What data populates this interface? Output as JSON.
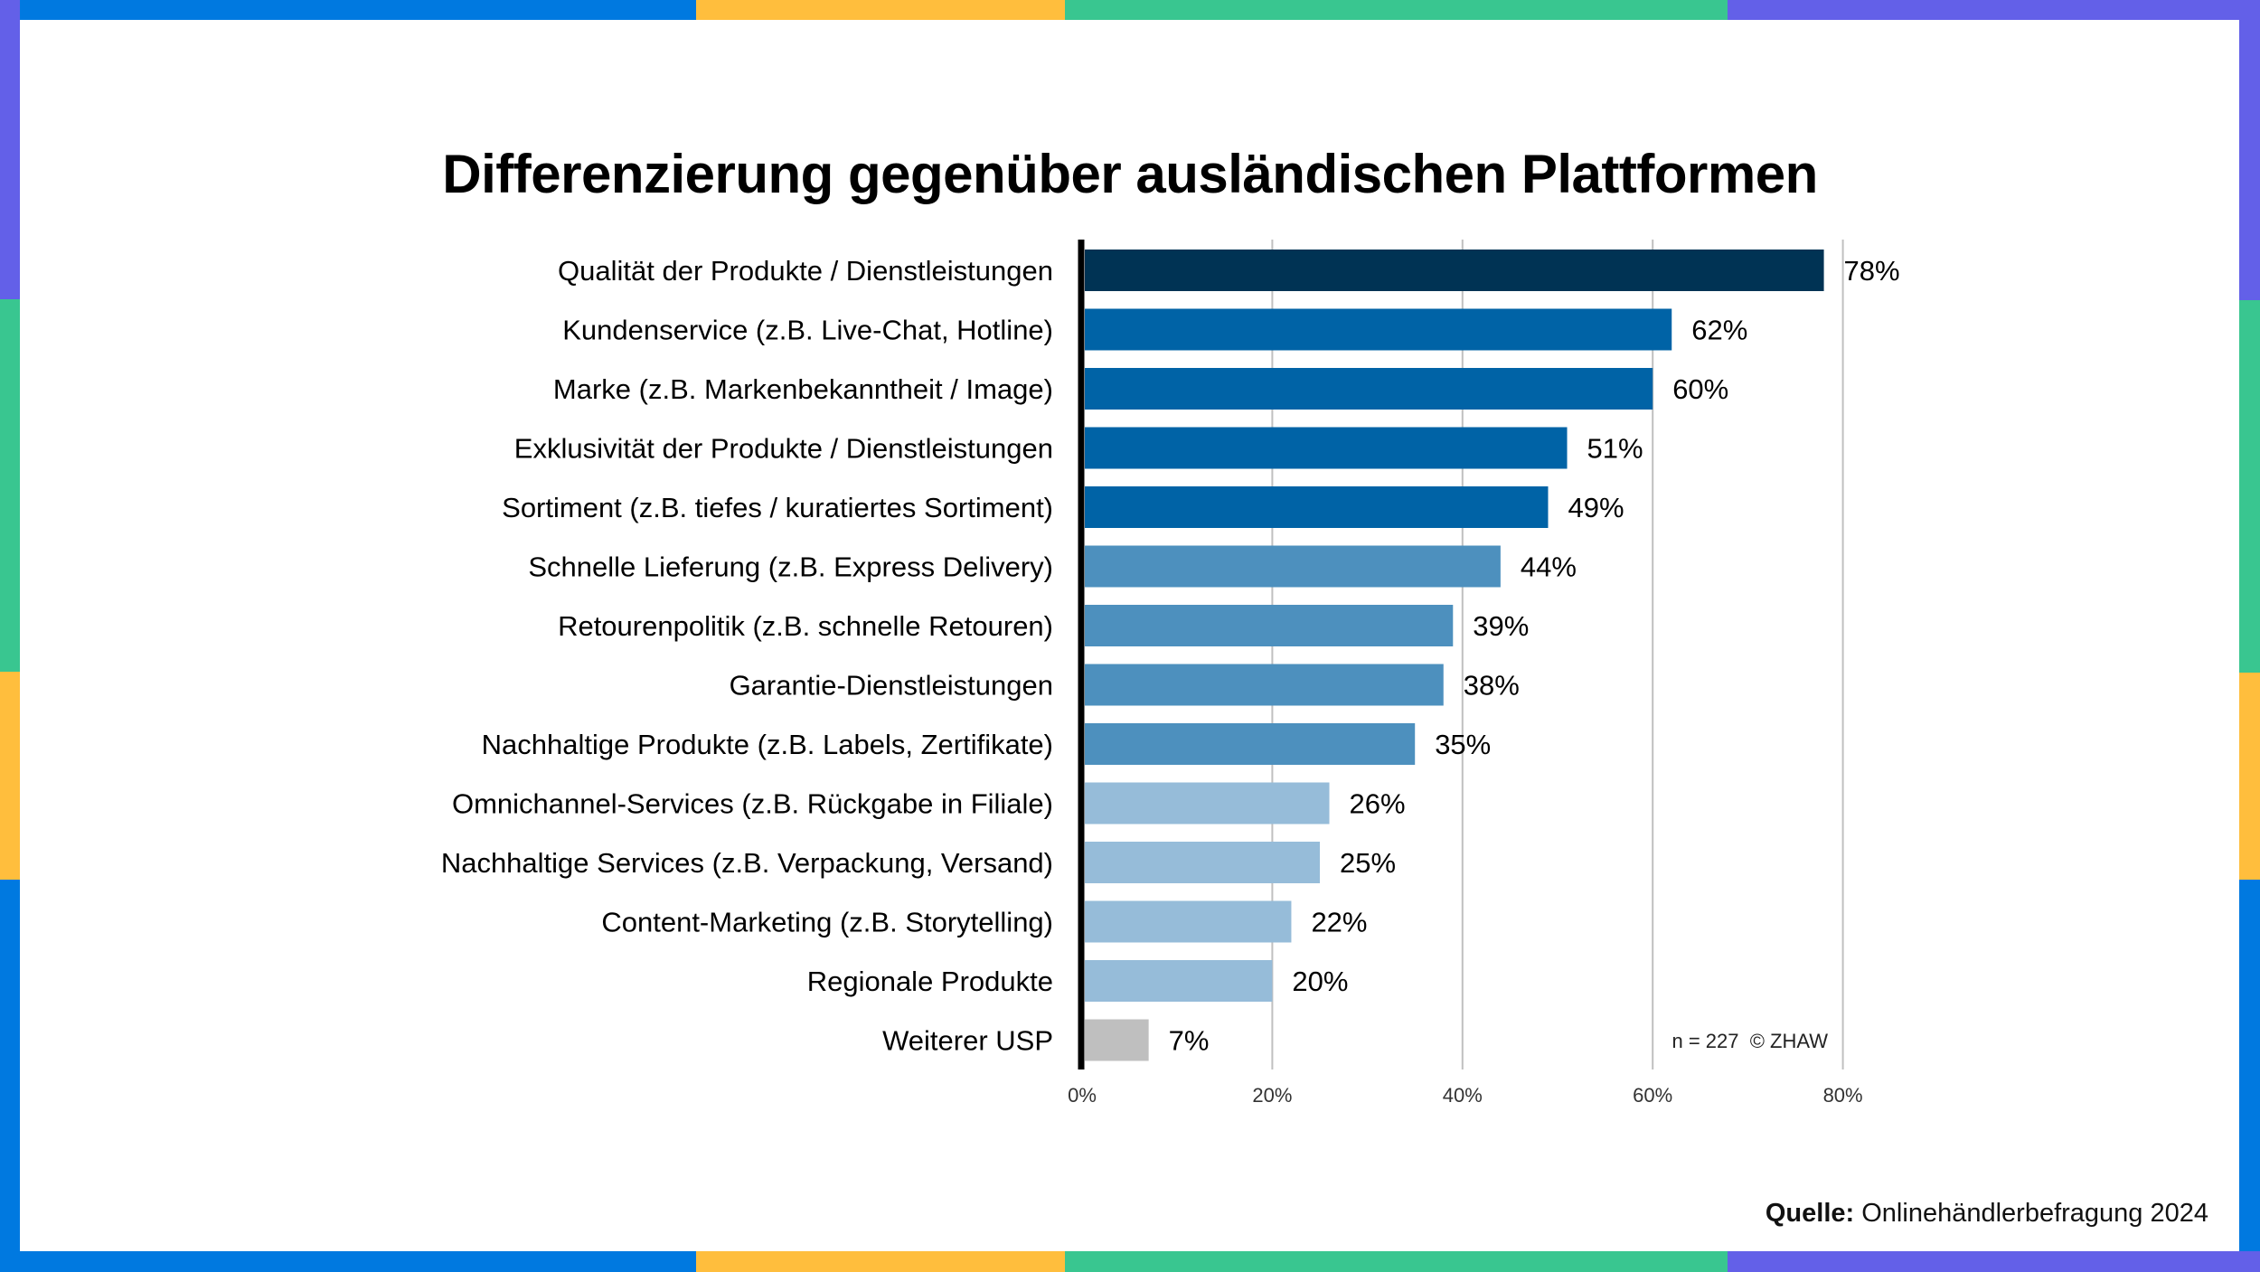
{
  "frame": {
    "border_colors": {
      "blue": "#0079E0",
      "yellow": "#FFBE3D",
      "green": "#39C690",
      "purple": "#6360E8"
    }
  },
  "source": {
    "label": "Quelle:",
    "text": " Onlinehändlerbefragung 2024"
  },
  "chart_data": {
    "type": "bar",
    "orientation": "horizontal",
    "title": "Differenzierung gegenüber ausländischen Plattformen",
    "xlabel": "",
    "ylabel": "",
    "xlim": [
      0,
      80
    ],
    "x_ticks": [
      0,
      20,
      40,
      60,
      80
    ],
    "x_tick_labels": [
      "0%",
      "20%",
      "40%",
      "60%",
      "80%"
    ],
    "grid": "vertical",
    "legend": "none",
    "annotation": "n = 227  © ZHAW",
    "categories": [
      "Qualität der Produkte / Dienstleistungen",
      "Kundenservice (z.B. Live-Chat, Hotline)",
      "Marke (z.B. Markenbekanntheit / Image)",
      "Exklusivität der Produkte / Dienstleistungen",
      "Sortiment (z.B. tiefes / kuratiertes Sortiment)",
      "Schnelle Lieferung (z.B. Express Delivery)",
      "Retourenpolitik (z.B. schnelle Retouren)",
      "Garantie-Dienstleistungen",
      "Nachhaltige Produkte (z.B. Labels, Zertifikate)",
      "Omnichannel-Services (z.B. Rückgabe in Filiale)",
      "Nachhaltige Services (z.B. Verpackung, Versand)",
      "Content-Marketing (z.B. Storytelling)",
      "Regionale Produkte",
      "Weiterer USP"
    ],
    "values": [
      78,
      62,
      60,
      51,
      49,
      44,
      39,
      38,
      35,
      26,
      25,
      22,
      20,
      7
    ],
    "value_labels": [
      "78%",
      "62%",
      "60%",
      "51%",
      "49%",
      "44%",
      "39%",
      "38%",
      "35%",
      "26%",
      "25%",
      "22%",
      "20%",
      "7%"
    ],
    "bar_colors": [
      "#003354",
      "#0063A6",
      "#0063A6",
      "#0063A6",
      "#0063A6",
      "#4D90BE",
      "#4D90BE",
      "#4D90BE",
      "#4D90BE",
      "#96BCD9",
      "#96BCD9",
      "#96BCD9",
      "#96BCD9",
      "#BFBFBF"
    ],
    "axis_color": "#000000",
    "grid_color": "#C0C0C0"
  }
}
